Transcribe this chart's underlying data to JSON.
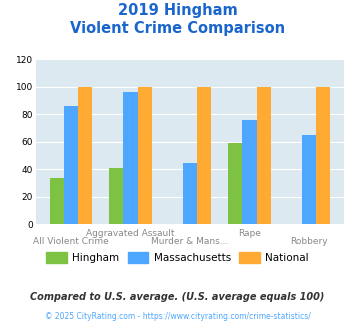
{
  "title_line1": "2019 Hingham",
  "title_line2": "Violent Crime Comparison",
  "categories": [
    "All Violent Crime",
    "Aggravated Assault",
    "Murder & Mans...",
    "Rape",
    "Robbery"
  ],
  "hingham": [
    34,
    41,
    0,
    59,
    0
  ],
  "massachusetts": [
    86,
    96,
    45,
    76,
    65
  ],
  "national": [
    100,
    100,
    100,
    100,
    100
  ],
  "hingham_color": "#7dc242",
  "massachusetts_color": "#4da6ff",
  "national_color": "#ffaa33",
  "background_color": "#dce9f0",
  "ylim": [
    0,
    120
  ],
  "yticks": [
    0,
    20,
    40,
    60,
    80,
    100,
    120
  ],
  "footnote1": "Compared to U.S. average. (U.S. average equals 100)",
  "footnote2": "© 2025 CityRating.com - https://www.cityrating.com/crime-statistics/",
  "title_color": "#1a66cc",
  "footnote1_color": "#333333",
  "footnote2_color": "#4da6ff"
}
